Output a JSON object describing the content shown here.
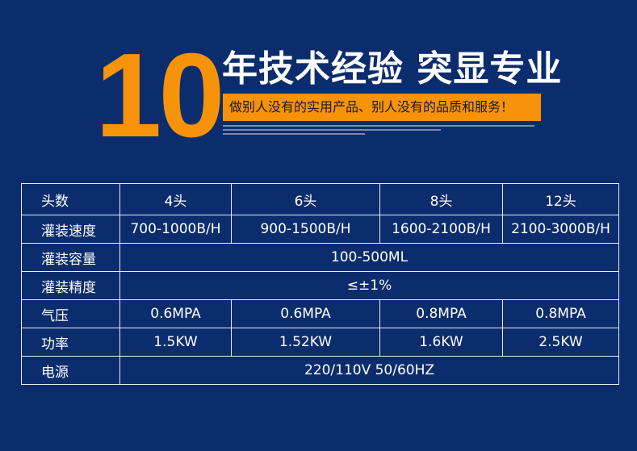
{
  "banner": {
    "number": "10",
    "headline": "年技术经验 突显专业",
    "slogan": "做别人没有的实用产品、别人没有的品质和服务！",
    "colors": {
      "background": "#0b2d6e",
      "accent": "#f7930a",
      "text": "#ffffff"
    }
  },
  "table": {
    "header": {
      "label": "头数",
      "values": [
        "4头",
        "6头",
        "8头",
        "12头"
      ]
    },
    "rows": [
      {
        "label": "灌装速度",
        "values": [
          "700-1000B/H",
          "900-1500B/H",
          "1600-2100B/H",
          "2100-3000B/H"
        ]
      },
      {
        "label": "灌装容量",
        "merged": "100-500ML"
      },
      {
        "label": "灌装精度",
        "merged": "≤±1%"
      },
      {
        "label": "气压",
        "values": [
          "0.6MPA",
          "0.6MPA",
          "0.8MPA",
          "0.8MPA"
        ]
      },
      {
        "label": "功率",
        "values": [
          "1.5KW",
          "1.52KW",
          "1.6KW",
          "2.5KW"
        ]
      },
      {
        "label": "电源",
        "merged": "220/110V 50/60HZ"
      }
    ]
  }
}
